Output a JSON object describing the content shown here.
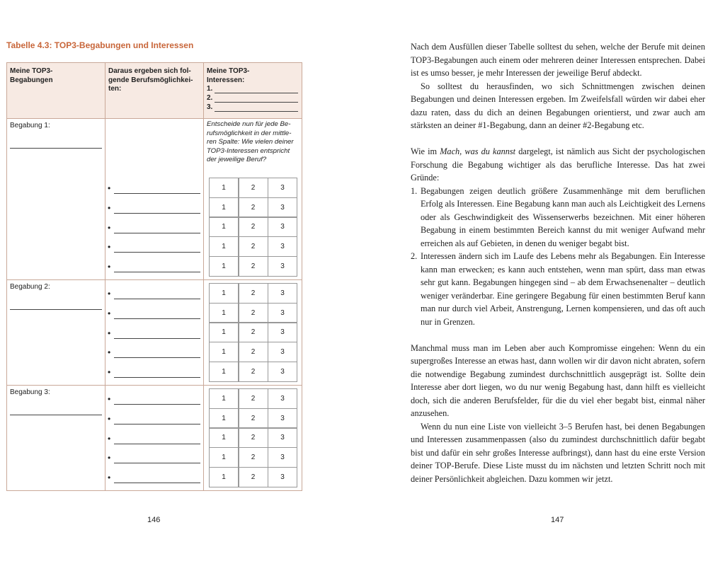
{
  "left_page": {
    "table_title": "Tabelle 4.3: TOP3-Begabungen und Interessen",
    "headers": [
      "Meine TOP3-\nBegabungen",
      "Daraus ergeben sich fol-\ngende Berufsmöglichkei-\nten:",
      "Meine TOP3-\nInteressen:"
    ],
    "interest_slots": [
      "1.",
      "2.",
      "3."
    ],
    "rows": [
      {
        "label": "Begabung 1:"
      },
      {
        "label": "Begabung 2:"
      },
      {
        "label": "Begabung 3:"
      }
    ],
    "instruction": "Entscheide nun für jede Be-\nrufsmöglichkeit in der mittle-\nren Spalte: Wie vielen deiner\nTOP3-Interessen entspricht\nder jeweilige Beruf?",
    "rating_scale": [
      "1",
      "2",
      "3"
    ],
    "page_number": "146"
  },
  "right_page": {
    "paragraph_1": "Nach dem Ausfüllen dieser Tabelle solltest du sehen, welche der Berufe mit deinen TOP3-Begabungen auch einem oder mehreren deiner Interessen entsprechen. Dabei ist es umso besser, je mehr Interessen der jeweilige Beruf abdeckt.",
    "paragraph_2": "So solltest du herausfinden, wo sich Schnittmengen zwischen deinen Begabungen und deinen Interessen ergeben. Im Zweifelsfall würden wir dabei eher dazu raten, dass du dich an deinen Begabungen orientierst, und zwar auch am stärksten an deiner #1-Begabung, dann an deiner #2-Begabung etc.",
    "paragraph_3": {
      "before": "Wie im",
      "italic": "Mach, was du kannst",
      "after": "dargelegt, ist nämlich aus Sicht der psychologischen Forschung die Begabung wichtiger als das berufliche Interesse. Das hat zwei Gründe:"
    },
    "list": [
      {
        "number": "1.",
        "text": "Begabungen zeigen deutlich größere Zusammenhänge mit dem beruflichen Erfolg als Interessen. Eine Begabung kann man auch als Leichtigkeit des Lernens oder als Geschwindigkeit des Wissenserwerbs bezeichnen. Mit einer höheren Begabung in einem bestimmten Bereich kannst du mit weniger Aufwand mehr erreichen als auf Gebieten, in denen du weniger begabt bist."
      },
      {
        "number": "2.",
        "text": "Interessen ändern sich im Laufe des Lebens mehr als Begabungen. Ein Interesse kann man erwecken; es kann auch entstehen, wenn man spürt, dass man etwas sehr gut kann. Begabungen hingegen sind – ab dem Erwachsenenalter – deutlich weniger veränderbar. Eine geringere Begabung für einen bestimmten Beruf kann man nur durch viel Arbeit, Anstrengung, Lernen kompensieren, und das oft auch nur in Grenzen."
      }
    ],
    "paragraph_4": "Manchmal muss man im Leben aber auch Kompromisse eingehen: Wenn du ein supergroßes Interesse an etwas hast, dann wollen wir dir davon nicht abraten, sofern die notwendige Begabung zumindest durchschnittlich ausgeprägt ist. Sollte dein Interesse aber dort liegen, wo du nur wenig Begabung hast, dann hilft es vielleicht doch, sich die anderen Berufsfelder, für die du viel eher begabt bist, einmal näher anzusehen.",
    "paragraph_5": "Wenn du nun eine Liste von vielleicht 3–5 Berufen hast, bei denen Begabungen und Interessen zusammenpassen (also du zumindest durchschnittlich dafür begabt bist und dafür ein sehr großes Interesse aufbringst), dann hast du eine erste Version deiner TOP-Berufe. Diese Liste musst du im nächsten und letzten Schritt noch mit deiner Persönlichkeit abgleichen. Dazu kommen wir jetzt.",
    "page_number": "147"
  }
}
